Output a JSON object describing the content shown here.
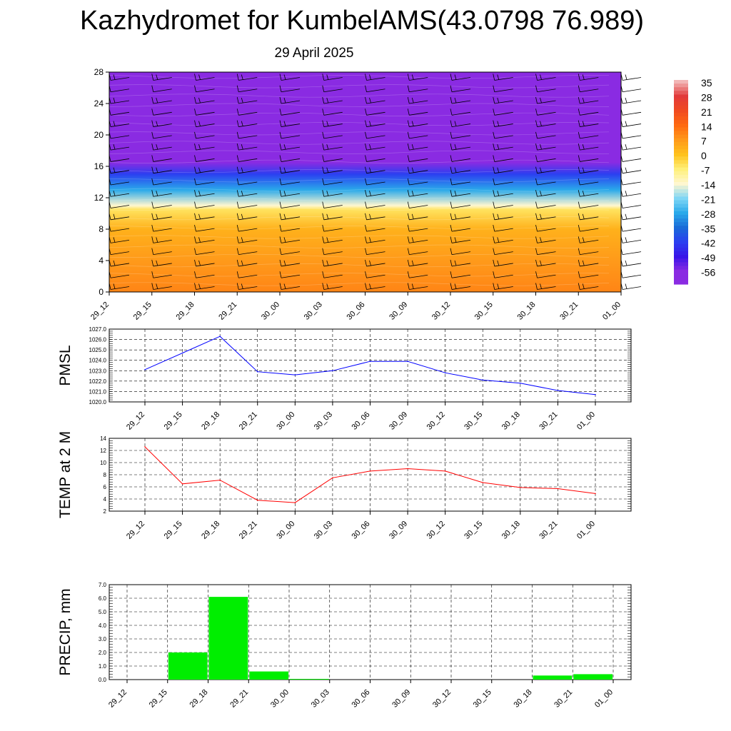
{
  "header": {
    "title": "Kazhydromet for KumbelAMS(43.0798 76.989)",
    "subtitle": "29 April 2025"
  },
  "time_labels": [
    "29_12",
    "29_15",
    "29_18",
    "29_21",
    "30_00",
    "30_03",
    "30_06",
    "30_09",
    "30_12",
    "30_15",
    "30_18",
    "30_21",
    "01_00"
  ],
  "chart_data": [
    {
      "type": "heatmap",
      "title": "",
      "y_ticks": [
        "0",
        "4",
        "8",
        "12",
        "16",
        "20",
        "24",
        "28"
      ],
      "ylim": [
        0,
        28
      ],
      "x": [
        "29_12",
        "29_15",
        "29_18",
        "29_21",
        "30_00",
        "30_03",
        "30_06",
        "30_09",
        "30_12",
        "30_15",
        "30_18",
        "30_21",
        "01_00"
      ],
      "colorbar": {
        "labels": [
          "35",
          "28",
          "21",
          "14",
          "7",
          "0",
          "-7",
          "-14",
          "-21",
          "-28",
          "-35",
          "-42",
          "-49",
          "-56"
        ],
        "colors": [
          "#f2b6b6",
          "#e23a3a",
          "#f04a20",
          "#ff6a10",
          "#ff9a1a",
          "#ffc21c",
          "#fff07a",
          "#fff7d0",
          "#7fd6f5",
          "#2aa9ea",
          "#1a6bd8",
          "#2b3ff0",
          "#3a14e8",
          "#8a2be2"
        ]
      },
      "profile": [
        {
          "height": 0,
          "value": 10
        },
        {
          "height": 4,
          "value": 7
        },
        {
          "height": 8,
          "value": 3
        },
        {
          "height": 10.5,
          "value": -5
        },
        {
          "height": 11,
          "value": -14
        },
        {
          "height": 13,
          "value": -28
        },
        {
          "height": 15,
          "value": -42
        },
        {
          "height": 16.5,
          "value": -56
        },
        {
          "height": 18,
          "value": -56
        },
        {
          "height": 28,
          "value": -58
        }
      ],
      "has_wind_barbs": true
    },
    {
      "type": "line",
      "ylabel": "PMSL",
      "y_ticks": [
        "1020.0",
        "1021.0",
        "1022.0",
        "1023.0",
        "1024.0",
        "1025.0",
        "1026.0",
        "1027.0"
      ],
      "ylim": [
        1020,
        1027
      ],
      "grid": true,
      "color": "#0000ff",
      "x": [
        "29_12",
        "29_15",
        "29_18",
        "29_21",
        "30_00",
        "30_03",
        "30_06",
        "30_09",
        "30_12",
        "30_15",
        "30_18",
        "30_21",
        "01_00"
      ],
      "values": [
        1023.1,
        1024.7,
        1026.3,
        1022.9,
        1022.6,
        1023.0,
        1023.9,
        1023.9,
        1022.8,
        1022.1,
        1021.8,
        1021.1,
        1020.7
      ]
    },
    {
      "type": "line",
      "ylabel": "TEMP at 2 M",
      "y_ticks": [
        "2",
        "4",
        "6",
        "8",
        "10",
        "12",
        "14"
      ],
      "ylim": [
        2,
        14
      ],
      "grid": true,
      "color": "#ff0000",
      "x": [
        "29_12",
        "29_15",
        "29_18",
        "29_21",
        "30_00",
        "30_03",
        "30_06",
        "30_09",
        "30_12",
        "30_15",
        "30_18",
        "30_21",
        "01_00"
      ],
      "values": [
        12.6,
        6.5,
        7.1,
        3.8,
        3.4,
        7.5,
        8.6,
        9.0,
        8.6,
        6.7,
        5.9,
        5.7,
        4.9
      ]
    },
    {
      "type": "bar",
      "ylabel": "PRECIP, mm",
      "y_ticks": [
        "0.0",
        "1.0",
        "2.0",
        "3.0",
        "4.0",
        "5.0",
        "6.0",
        "7.0"
      ],
      "ylim": [
        0,
        7
      ],
      "grid": true,
      "color": "#00ee00",
      "x": [
        "29_12",
        "29_15",
        "29_18",
        "29_21",
        "30_00",
        "30_03",
        "30_06",
        "30_09",
        "30_12",
        "30_15",
        "30_18",
        "30_21",
        "01_00"
      ],
      "values": [
        0,
        2.0,
        6.1,
        0.6,
        0.05,
        0,
        0,
        0,
        0,
        0,
        0.3,
        0.4,
        0
      ]
    }
  ]
}
